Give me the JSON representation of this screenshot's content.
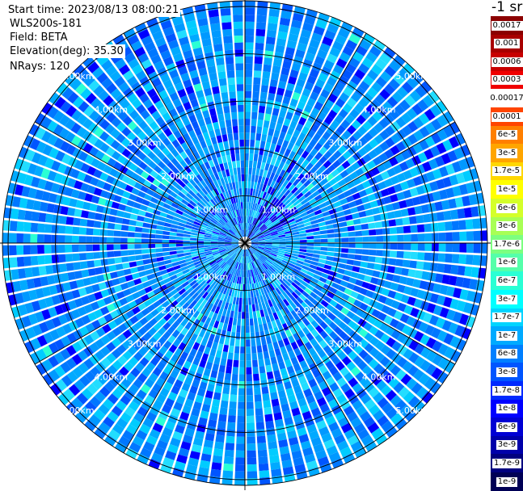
{
  "header": {
    "start_time": "Start time: 2023/08/13 08:00:21",
    "instrument": "WLS200s-181",
    "field": "Field: BETA",
    "elevation": "Elevation(deg): 35.30",
    "nrays": "NRays: 120"
  },
  "colorbar": {
    "unit": "-1 sr",
    "entries": [
      {
        "label": "0.0017",
        "color": "#8b0000"
      },
      {
        "label": "0.001",
        "color": "#a80000"
      },
      {
        "label": "0.0006",
        "color": "#c80000"
      },
      {
        "label": "0.0003",
        "color": "#f00000"
      },
      {
        "label": "0.00017",
        "color": "#ffffff"
      },
      {
        "label": "0.0001",
        "color": "#ff4500"
      },
      {
        "label": "6e-5",
        "color": "#ff7f00"
      },
      {
        "label": "3e-5",
        "color": "#ffa500"
      },
      {
        "label": "1.7e-5",
        "color": "#ffd700"
      },
      {
        "label": "1e-5",
        "color": "#ffff00"
      },
      {
        "label": "6e-6",
        "color": "#d4ff2a"
      },
      {
        "label": "3e-6",
        "color": "#a8ff55"
      },
      {
        "label": "1.7e-6",
        "color": "#7cff80"
      },
      {
        "label": "1e-6",
        "color": "#55ffaa"
      },
      {
        "label": "6e-7",
        "color": "#2affd4"
      },
      {
        "label": "3e-7",
        "color": "#00ffff"
      },
      {
        "label": "1.7e-7",
        "color": "#00d4ff"
      },
      {
        "label": "1e-7",
        "color": "#00aaff"
      },
      {
        "label": "6e-8",
        "color": "#007fff"
      },
      {
        "label": "3e-8",
        "color": "#0055ff"
      },
      {
        "label": "1.7e-8",
        "color": "#002aff"
      },
      {
        "label": "1e-8",
        "color": "#0000ff"
      },
      {
        "label": "6e-9",
        "color": "#0000d4"
      },
      {
        "label": "3e-9",
        "color": "#0000aa"
      },
      {
        "label": "1.7e-9",
        "color": "#00007f"
      },
      {
        "label": "1e-9",
        "color": "#000055"
      }
    ]
  },
  "range_labels": [
    "1.00km",
    "2.00km",
    "3.00km",
    "4.00km",
    "5.00km"
  ],
  "colors": {
    "background": "#ffffff",
    "ring_line": "#000000"
  }
}
